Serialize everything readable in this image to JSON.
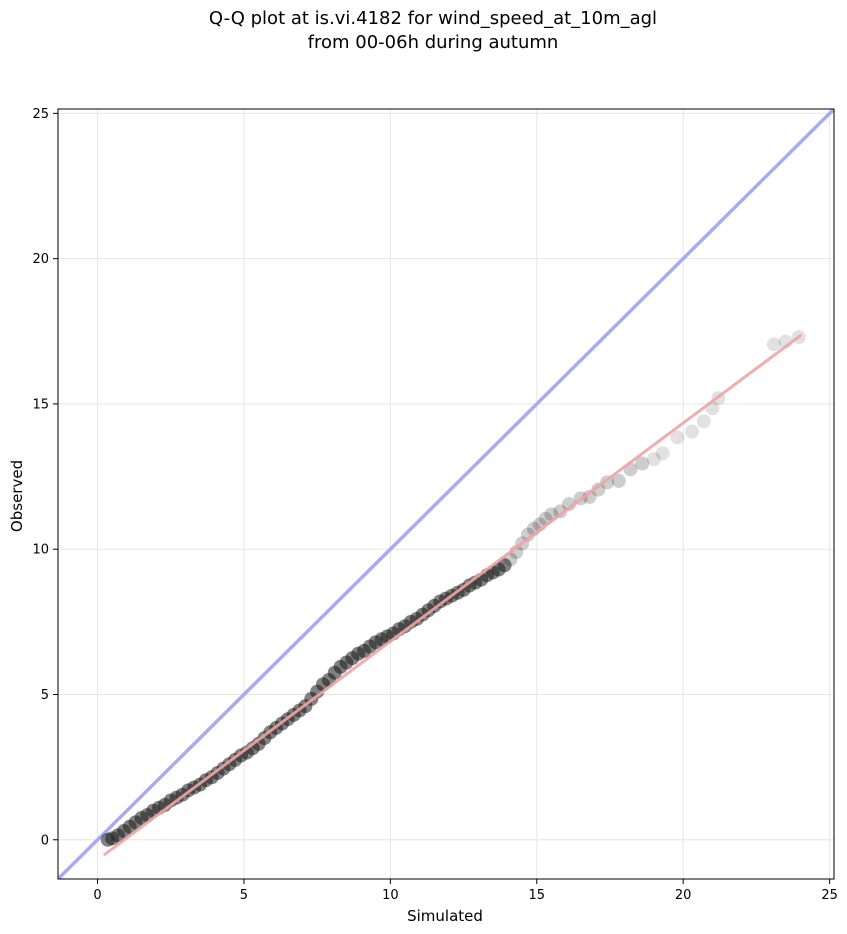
{
  "chart_data": {
    "type": "scatter",
    "title": "Q-Q plot at is.vi.4182 for wind_speed_at_10m_agl",
    "subtitle": "from 00-06h during autumn",
    "xlabel": "Simulated",
    "ylabel": "Observed",
    "xlim": [
      -1.35,
      25.15
    ],
    "ylim": [
      -1.35,
      25.15
    ],
    "xticks": [
      0,
      5,
      10,
      15,
      20,
      25
    ],
    "yticks": [
      0,
      5,
      10,
      15,
      20,
      25
    ],
    "grid": true,
    "identity_line": {
      "from": [
        -1.35,
        -1.35
      ],
      "to": [
        25.15,
        25.15
      ],
      "color": "#a9abf2"
    },
    "fit_line": {
      "from": [
        0.25,
        -0.5
      ],
      "to": [
        24.0,
        17.35
      ],
      "color": "#f2a3a3"
    },
    "points_color": "#1a1a1a",
    "points": [
      [
        0.35,
        0.0
      ],
      [
        0.5,
        0.05
      ],
      [
        0.7,
        0.15
      ],
      [
        0.9,
        0.3
      ],
      [
        1.1,
        0.45
      ],
      [
        1.3,
        0.6
      ],
      [
        1.5,
        0.75
      ],
      [
        1.7,
        0.85
      ],
      [
        1.9,
        1.0
      ],
      [
        2.1,
        1.1
      ],
      [
        2.3,
        1.2
      ],
      [
        2.5,
        1.35
      ],
      [
        2.7,
        1.45
      ],
      [
        2.9,
        1.55
      ],
      [
        3.1,
        1.7
      ],
      [
        3.3,
        1.8
      ],
      [
        3.5,
        1.9
      ],
      [
        3.7,
        2.05
      ],
      [
        3.9,
        2.15
      ],
      [
        4.1,
        2.3
      ],
      [
        4.3,
        2.45
      ],
      [
        4.5,
        2.6
      ],
      [
        4.7,
        2.75
      ],
      [
        4.9,
        2.9
      ],
      [
        5.1,
        3.0
      ],
      [
        5.3,
        3.15
      ],
      [
        5.5,
        3.3
      ],
      [
        5.7,
        3.5
      ],
      [
        5.9,
        3.7
      ],
      [
        6.1,
        3.85
      ],
      [
        6.3,
        4.0
      ],
      [
        6.5,
        4.15
      ],
      [
        6.7,
        4.3
      ],
      [
        6.9,
        4.45
      ],
      [
        7.1,
        4.6
      ],
      [
        7.3,
        4.85
      ],
      [
        7.5,
        5.1
      ],
      [
        7.7,
        5.35
      ],
      [
        7.9,
        5.5
      ],
      [
        8.1,
        5.75
      ],
      [
        8.3,
        5.95
      ],
      [
        8.5,
        6.1
      ],
      [
        8.7,
        6.25
      ],
      [
        8.9,
        6.4
      ],
      [
        9.1,
        6.5
      ],
      [
        9.3,
        6.65
      ],
      [
        9.5,
        6.8
      ],
      [
        9.7,
        6.9
      ],
      [
        9.9,
        7.0
      ],
      [
        10.1,
        7.1
      ],
      [
        10.3,
        7.25
      ],
      [
        10.5,
        7.35
      ],
      [
        10.7,
        7.5
      ],
      [
        10.9,
        7.6
      ],
      [
        11.1,
        7.75
      ],
      [
        11.3,
        7.9
      ],
      [
        11.5,
        8.05
      ],
      [
        11.7,
        8.2
      ],
      [
        11.9,
        8.3
      ],
      [
        12.1,
        8.4
      ],
      [
        12.3,
        8.5
      ],
      [
        12.5,
        8.6
      ],
      [
        12.7,
        8.75
      ],
      [
        12.9,
        8.85
      ],
      [
        13.1,
        8.95
      ],
      [
        13.3,
        9.1
      ],
      [
        13.5,
        9.2
      ],
      [
        13.7,
        9.3
      ],
      [
        13.9,
        9.45
      ],
      [
        14.1,
        9.65
      ],
      [
        14.3,
        9.9
      ],
      [
        14.5,
        10.2
      ],
      [
        14.7,
        10.5
      ],
      [
        14.9,
        10.7
      ],
      [
        15.1,
        10.85
      ],
      [
        15.3,
        11.05
      ],
      [
        15.5,
        11.2
      ],
      [
        15.8,
        11.3
      ],
      [
        16.1,
        11.55
      ],
      [
        16.5,
        11.75
      ],
      [
        16.8,
        11.8
      ],
      [
        17.1,
        12.05
      ],
      [
        17.4,
        12.3
      ],
      [
        17.8,
        12.35
      ],
      [
        18.2,
        12.75
      ],
      [
        18.6,
        12.95
      ],
      [
        19.0,
        13.1
      ],
      [
        19.3,
        13.3
      ],
      [
        19.8,
        13.85
      ],
      [
        20.3,
        14.05
      ],
      [
        20.7,
        14.4
      ],
      [
        21.0,
        14.85
      ],
      [
        21.2,
        15.2
      ],
      [
        23.1,
        17.05
      ],
      [
        23.5,
        17.15
      ],
      [
        23.95,
        17.3
      ]
    ]
  }
}
